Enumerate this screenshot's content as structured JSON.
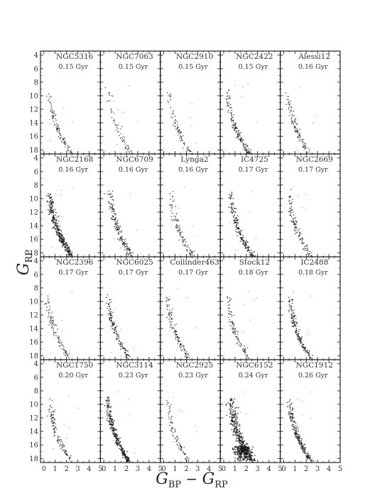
{
  "chart_data": {
    "type": "scatter",
    "layout": "grid",
    "rows": 4,
    "columns": 5,
    "xlabel": {
      "main": "G",
      "sub1": "BP",
      "minus": " − ",
      "main2": "G",
      "sub2": "RP"
    },
    "ylabel": {
      "main": "G",
      "sub": "RP"
    },
    "xlim": [
      -0.3,
      5
    ],
    "ylim": [
      18.6,
      3.4
    ],
    "x_ticks": [
      0,
      1,
      2,
      3,
      4,
      5
    ],
    "y_ticks": [
      4,
      6,
      8,
      10,
      12,
      14,
      16,
      18
    ],
    "y_inverted": true,
    "point_color": "#1a1a1a",
    "panels": [
      {
        "name": "NGC5316",
        "age": "0.15 Gyr",
        "bluest": 0.45,
        "spread": 0.12,
        "density": 0.7
      },
      {
        "name": "NGC7063",
        "age": "0.15 Gyr",
        "bluest": 0.45,
        "spread": 0.12,
        "density": 0.45
      },
      {
        "name": "NGC2910",
        "age": "0.15 Gyr",
        "bluest": 0.45,
        "spread": 0.12,
        "density": 0.55
      },
      {
        "name": "NGC2422",
        "age": "0.15 Gyr",
        "bluest": 0.3,
        "spread": 0.12,
        "density": 1.0
      },
      {
        "name": "Alessi12",
        "age": "0.16 Gyr",
        "bluest": 0.3,
        "spread": 0.12,
        "density": 0.7
      },
      {
        "name": "NGC2168",
        "age": "0.16 Gyr",
        "bluest": 0.5,
        "spread": 0.14,
        "density": 2.0
      },
      {
        "name": "NGC6709",
        "age": "0.16 Gyr",
        "bluest": 0.55,
        "spread": 0.14,
        "density": 1.1
      },
      {
        "name": "Lynga2",
        "age": "0.16 Gyr",
        "bluest": 0.6,
        "spread": 0.14,
        "density": 0.7
      },
      {
        "name": "IC4725",
        "age": "0.17 Gyr",
        "bluest": 0.6,
        "spread": 0.14,
        "density": 1.2
      },
      {
        "name": "NGC2669",
        "age": "0.17 Gyr",
        "bluest": 0.45,
        "spread": 0.13,
        "density": 0.8
      },
      {
        "name": "NGC2396",
        "age": "0.17 Gyr",
        "bluest": 0.3,
        "spread": 0.12,
        "density": 0.7
      },
      {
        "name": "NGC6025",
        "age": "0.17 Gyr",
        "bluest": 0.35,
        "spread": 0.12,
        "density": 1.0
      },
      {
        "name": "Collinder463",
        "age": "0.17 Gyr",
        "bluest": 0.3,
        "spread": 0.12,
        "density": 0.8
      },
      {
        "name": "Stock12",
        "age": "0.18 Gyr",
        "bluest": 0.3,
        "spread": 0.12,
        "density": 0.7
      },
      {
        "name": "IC2488",
        "age": "0.18 Gyr",
        "bluest": 0.5,
        "spread": 0.13,
        "density": 1.1
      },
      {
        "name": "NGC1750",
        "age": "0.20 Gyr",
        "bluest": 0.5,
        "spread": 0.13,
        "density": 0.8
      },
      {
        "name": "NGC3114",
        "age": "0.23 Gyr",
        "bluest": 0.3,
        "spread": 0.12,
        "density": 1.8
      },
      {
        "name": "NGC2925",
        "age": "0.23 Gyr",
        "bluest": 0.3,
        "spread": 0.12,
        "density": 0.6
      },
      {
        "name": "NGC6152",
        "age": "0.24 Gyr",
        "bluest": 0.6,
        "spread": 0.2,
        "density": 2.4,
        "extra_clump": true
      },
      {
        "name": "NGC1912",
        "age": "0.26 Gyr",
        "bluest": 0.5,
        "spread": 0.12,
        "density": 1.4
      }
    ]
  }
}
